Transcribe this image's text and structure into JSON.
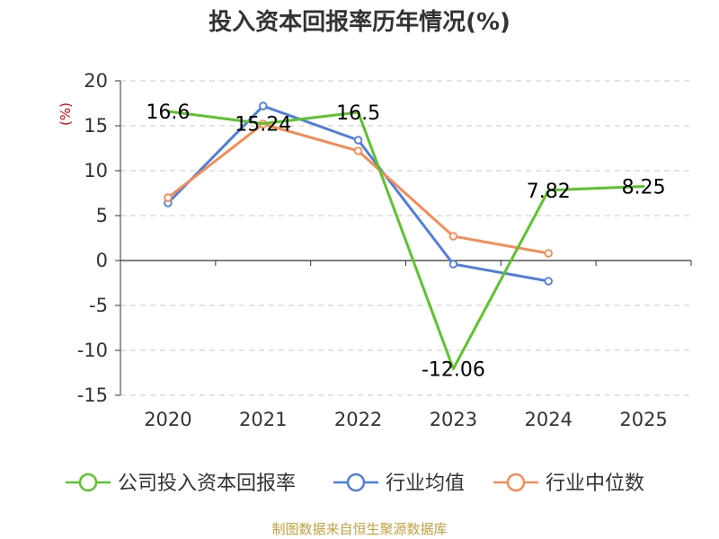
{
  "chart_data": {
    "type": "line",
    "title": "投入资本回报率历年情况(%)",
    "unit_label": "(%)",
    "categories": [
      "2020",
      "2021",
      "2022",
      "2023",
      "2024",
      "2025"
    ],
    "ylim": [
      -15,
      20
    ],
    "yticks": [
      20,
      15,
      10,
      5,
      0,
      -5,
      -10,
      -15
    ],
    "grid": true,
    "legend_position": "bottom",
    "series": [
      {
        "name": "公司投入资本回报率",
        "color": "#5cc32c",
        "values": [
          16.6,
          15.24,
          16.5,
          -12.06,
          7.82,
          8.25
        ],
        "labels": [
          "16.6",
          "15.24",
          "16.5",
          "-12.06",
          "7.82",
          "8.25"
        ],
        "markers": false
      },
      {
        "name": "行业均值",
        "color": "#4f7fdb",
        "values": [
          6.4,
          17.2,
          13.4,
          -0.4,
          -2.3,
          null
        ],
        "markers": true
      },
      {
        "name": "行业中位数",
        "color": "#f58b55",
        "values": [
          7.0,
          15.2,
          12.2,
          2.7,
          0.8,
          null
        ],
        "markers": true
      }
    ]
  },
  "footer": {
    "source": "制图数据来自恒生聚源数据库"
  }
}
